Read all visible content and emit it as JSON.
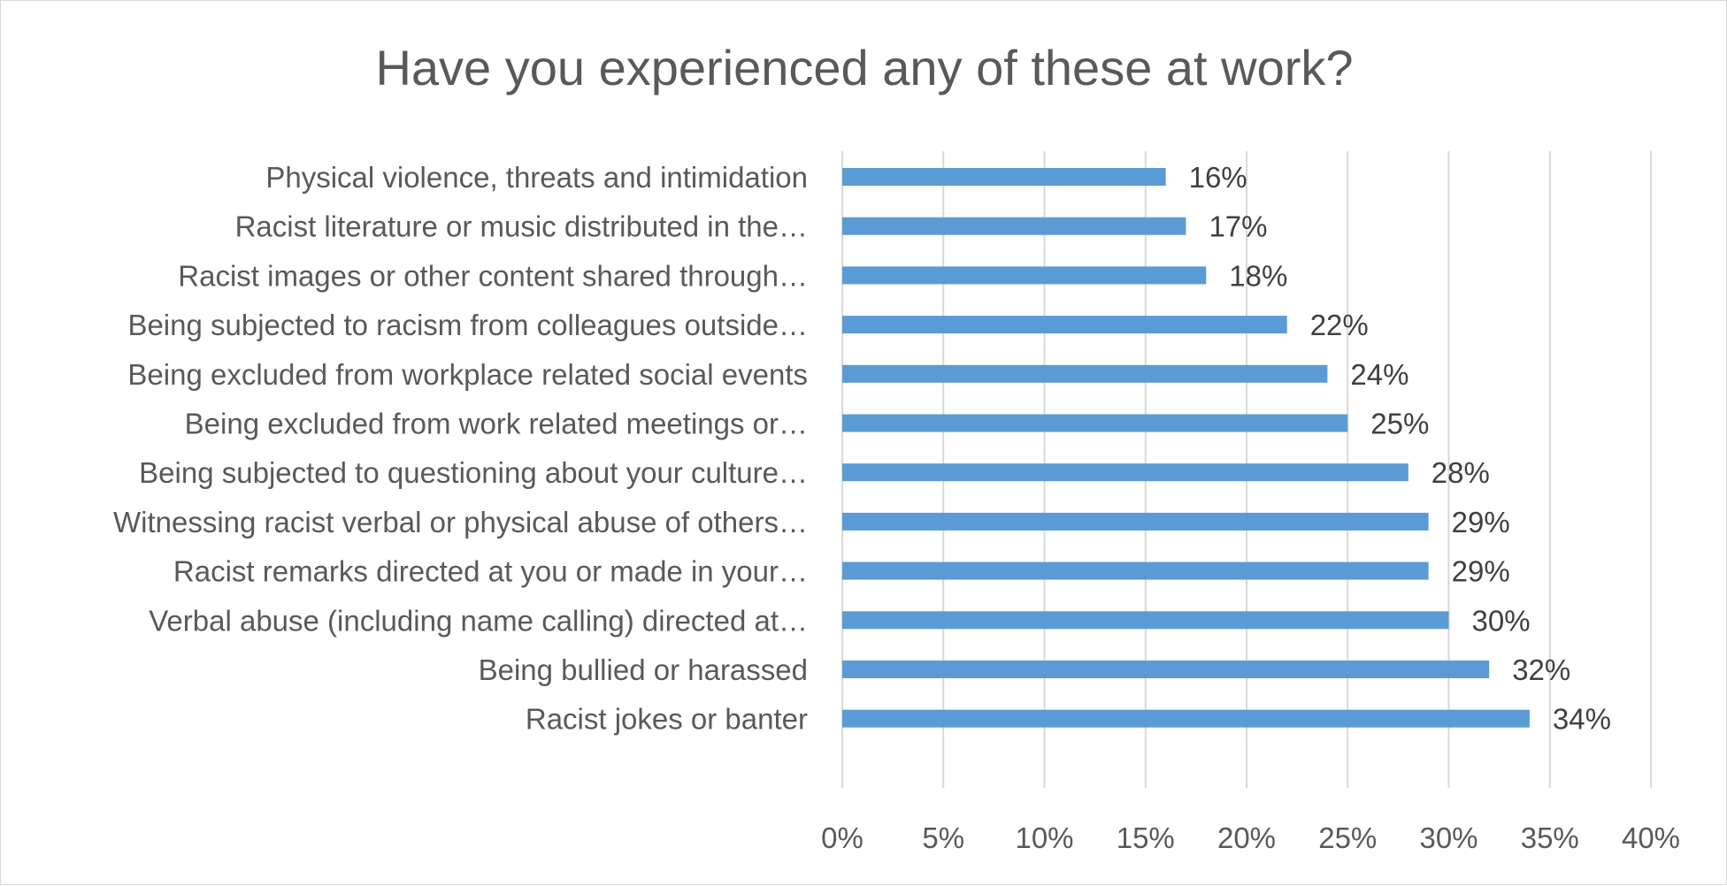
{
  "chart_data": {
    "type": "bar",
    "orientation": "horizontal",
    "title": "Have you experienced any of these at work?",
    "categories": [
      "Physical violence, threats and intimidation",
      "Racist literature or music distributed in the…",
      "Racist images or other content shared through…",
      "Being subjected to racism from colleagues outside…",
      "Being excluded from workplace related social events",
      "Being excluded from work related meetings or…",
      "Being subjected to questioning about your culture…",
      "Witnessing racist verbal or physical abuse of others…",
      "Racist remarks directed at you or made in your…",
      "Verbal abuse (including name calling) directed at…",
      "Being bullied or harassed",
      "Racist jokes or banter"
    ],
    "values": [
      16,
      17,
      18,
      22,
      24,
      25,
      28,
      29,
      29,
      30,
      32,
      34
    ],
    "data_labels": [
      "16%",
      "17%",
      "18%",
      "22%",
      "24%",
      "25%",
      "28%",
      "29%",
      "29%",
      "30%",
      "32%",
      "34%"
    ],
    "x_ticks": [
      "0%",
      "5%",
      "10%",
      "15%",
      "20%",
      "25%",
      "30%",
      "35%",
      "40%"
    ],
    "xlim": [
      0,
      40
    ],
    "xlabel": "",
    "ylabel": "",
    "grid": true,
    "legend": "none",
    "colors": {
      "bar": "#5b9bd5",
      "grid": "#d9d9d9",
      "text": "#595959"
    }
  }
}
